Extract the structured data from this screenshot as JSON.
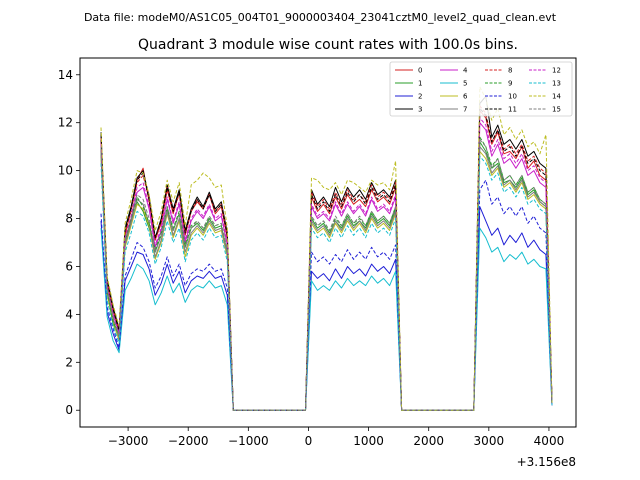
{
  "figure": {
    "suptitle": "Data file: modeM0/AS1C05_004T01_9000003404_23041cztM0_level2_quad_clean.evt"
  },
  "chart_data": {
    "type": "line",
    "title": "Quadrant 3 module wise count rates with 100.0s bins.",
    "xlabel": "",
    "ylabel": "",
    "x_offset_label": "+3.156e8",
    "xlim": [
      -3800,
      4450
    ],
    "ylim": [
      -0.7,
      14.7
    ],
    "xticks": [
      -3000,
      -2000,
      -1000,
      0,
      1000,
      2000,
      3000,
      4000
    ],
    "xtick_labels": [
      "−3000",
      "−2000",
      "−1000",
      "0",
      "1000",
      "2000",
      "3000",
      "4000"
    ],
    "yticks": [
      0,
      2,
      4,
      6,
      8,
      10,
      12,
      14
    ],
    "ytick_labels": [
      "0",
      "2",
      "4",
      "6",
      "8",
      "10",
      "12",
      "14"
    ],
    "legend_position": "top-right",
    "x": [
      -3450,
      -3350,
      -3250,
      -3150,
      -3050,
      -2950,
      -2850,
      -2750,
      -2650,
      -2550,
      -2450,
      -2350,
      -2250,
      -2150,
      -2050,
      -1950,
      -1850,
      -1750,
      -1650,
      -1550,
      -1450,
      -1350,
      -1250,
      -1150,
      -150,
      -50,
      50,
      150,
      250,
      350,
      450,
      550,
      650,
      750,
      850,
      950,
      1050,
      1150,
      1250,
      1350,
      1450,
      1550,
      1650,
      1750,
      2650,
      2750,
      2850,
      2950,
      3050,
      3150,
      3250,
      3350,
      3450,
      3550,
      3650,
      3750,
      3850,
      3950,
      4050
    ],
    "series": [
      {
        "name": "0",
        "color": "#d62020",
        "dash": "solid",
        "values": [
          11.3,
          5.3,
          4.2,
          3.3,
          7.3,
          8.4,
          9.6,
          10.1,
          8.7,
          7.1,
          7.8,
          9.2,
          8.2,
          9.1,
          7.3,
          8.3,
          8.7,
          8.4,
          9.0,
          8.2,
          8.5,
          7.2,
          0,
          0,
          0,
          0,
          8.9,
          8.3,
          8.6,
          8.2,
          8.9,
          8.4,
          9.0,
          8.6,
          8.8,
          8.5,
          9.2,
          8.7,
          8.9,
          8.6,
          9.3,
          0,
          0,
          0,
          0,
          0,
          12.5,
          12.2,
          11.1,
          11.6,
          10.7,
          10.8,
          10.5,
          11.0,
          10.1,
          10.4,
          9.8,
          9.6,
          0.3
        ]
      },
      {
        "name": "1",
        "color": "#2a9d2a",
        "dash": "solid",
        "values": [
          10.8,
          4.9,
          3.6,
          3.0,
          7.0,
          7.9,
          8.7,
          8.3,
          7.6,
          6.6,
          7.3,
          8.4,
          7.5,
          8.2,
          6.8,
          7.6,
          7.8,
          7.5,
          8.0,
          7.6,
          7.7,
          6.6,
          0,
          0,
          0,
          0,
          8.0,
          7.6,
          7.8,
          7.4,
          7.9,
          7.6,
          8.1,
          7.7,
          7.9,
          7.6,
          8.2,
          7.8,
          8.0,
          7.7,
          8.4,
          0,
          0,
          0,
          0,
          0,
          11.2,
          10.8,
          10.1,
          10.3,
          9.5,
          9.6,
          9.3,
          9.7,
          9.0,
          9.2,
          8.7,
          8.5,
          0.3
        ]
      },
      {
        "name": "2",
        "color": "#1f1fd6",
        "dash": "solid",
        "values": [
          7.9,
          4.1,
          3.2,
          2.5,
          5.4,
          6.0,
          6.6,
          6.5,
          5.9,
          4.8,
          5.3,
          6.1,
          5.3,
          5.8,
          4.9,
          5.4,
          5.6,
          5.5,
          5.8,
          5.5,
          5.6,
          4.8,
          0,
          0,
          0,
          0,
          5.8,
          5.5,
          5.7,
          5.4,
          5.9,
          5.5,
          6.0,
          5.7,
          5.9,
          5.6,
          6.1,
          5.8,
          6.0,
          5.7,
          6.3,
          0,
          0,
          0,
          0,
          0,
          8.5,
          7.9,
          7.3,
          7.6,
          6.9,
          7.3,
          7.0,
          7.4,
          6.8,
          7.1,
          6.7,
          6.5,
          0.2
        ]
      },
      {
        "name": "3",
        "color": "#000000",
        "dash": "solid",
        "values": [
          11.6,
          5.5,
          4.3,
          3.4,
          7.6,
          8.5,
          9.7,
          10.0,
          8.9,
          7.2,
          8.0,
          9.4,
          8.4,
          9.2,
          7.5,
          8.4,
          8.9,
          8.5,
          9.1,
          8.4,
          8.7,
          7.4,
          0,
          0,
          0,
          0,
          9.2,
          8.6,
          8.9,
          8.5,
          9.3,
          8.7,
          9.3,
          8.9,
          9.2,
          8.8,
          9.5,
          9.0,
          9.2,
          8.9,
          9.6,
          0,
          0,
          0,
          0,
          0,
          12.8,
          13.1,
          11.4,
          11.9,
          11.1,
          11.3,
          10.9,
          11.3,
          10.6,
          10.8,
          10.3,
          10.1,
          0.3
        ]
      },
      {
        "name": "4",
        "color": "#c81fc8",
        "dash": "solid",
        "values": [
          11.0,
          5.1,
          4.0,
          3.2,
          7.1,
          8.0,
          9.1,
          9.3,
          8.4,
          6.8,
          7.5,
          8.8,
          7.8,
          8.6,
          7.0,
          7.9,
          8.3,
          8.0,
          8.5,
          7.9,
          8.1,
          6.9,
          0,
          0,
          0,
          0,
          8.5,
          8.0,
          8.2,
          7.9,
          8.6,
          8.1,
          8.6,
          8.2,
          8.5,
          8.1,
          8.8,
          8.3,
          8.5,
          8.2,
          8.9,
          0,
          0,
          0,
          0,
          0,
          12.0,
          11.7,
          10.6,
          11.1,
          10.3,
          10.5,
          10.1,
          10.5,
          9.8,
          10.0,
          9.5,
          9.3,
          0.3
        ]
      },
      {
        "name": "5",
        "color": "#17becf",
        "dash": "solid",
        "values": [
          7.6,
          3.9,
          2.9,
          2.4,
          5.0,
          5.5,
          6.1,
          5.9,
          5.4,
          4.4,
          4.9,
          5.6,
          4.9,
          5.3,
          4.5,
          5.0,
          5.2,
          5.1,
          5.4,
          5.1,
          5.2,
          4.4,
          0,
          0,
          0,
          0,
          5.4,
          5.0,
          5.2,
          5.0,
          5.4,
          5.1,
          5.5,
          5.2,
          5.4,
          5.2,
          5.6,
          5.3,
          5.5,
          5.2,
          5.8,
          0,
          0,
          0,
          0,
          0,
          7.6,
          7.2,
          6.6,
          6.8,
          6.2,
          6.5,
          6.3,
          6.6,
          6.1,
          6.3,
          6.0,
          5.9,
          0.2
        ]
      },
      {
        "name": "6",
        "color": "#bcbd22",
        "dash": "solid",
        "values": [
          10.6,
          4.8,
          3.7,
          2.9,
          6.8,
          7.7,
          8.6,
          8.4,
          7.7,
          6.3,
          7.0,
          8.2,
          7.2,
          7.9,
          6.4,
          7.3,
          7.6,
          7.3,
          7.8,
          7.4,
          7.5,
          6.4,
          0,
          0,
          0,
          0,
          7.8,
          7.4,
          7.6,
          7.2,
          7.8,
          7.4,
          7.9,
          7.5,
          7.8,
          7.4,
          8.0,
          7.6,
          7.8,
          7.5,
          8.2,
          0,
          0,
          0,
          0,
          0,
          10.8,
          10.5,
          9.8,
          10.1,
          9.3,
          9.5,
          9.1,
          9.5,
          8.8,
          9.0,
          8.6,
          8.4,
          0.3
        ]
      },
      {
        "name": "7",
        "color": "#7f7f7f",
        "dash": "solid",
        "values": [
          10.7,
          5.0,
          3.8,
          3.0,
          6.9,
          7.8,
          8.8,
          8.6,
          7.8,
          6.4,
          7.1,
          8.3,
          7.3,
          8.0,
          6.6,
          7.4,
          7.7,
          7.4,
          7.9,
          7.5,
          7.6,
          6.5,
          0,
          0,
          0,
          0,
          7.9,
          7.5,
          7.7,
          7.3,
          7.9,
          7.5,
          8.0,
          7.6,
          7.9,
          7.5,
          8.1,
          7.7,
          7.9,
          7.6,
          8.3,
          0,
          0,
          0,
          0,
          0,
          11.0,
          10.7,
          9.9,
          10.2,
          9.4,
          9.6,
          9.2,
          9.6,
          8.9,
          9.1,
          8.7,
          8.5,
          0.3
        ]
      },
      {
        "name": "8",
        "color": "#d62020",
        "dash": "dashed",
        "values": [
          11.4,
          5.4,
          4.2,
          3.3,
          7.4,
          8.3,
          9.5,
          9.8,
          8.8,
          7.1,
          7.9,
          9.3,
          8.3,
          9.0,
          7.4,
          8.3,
          8.8,
          8.4,
          9.0,
          8.3,
          8.6,
          7.3,
          0,
          0,
          0,
          0,
          9.1,
          8.5,
          8.8,
          8.4,
          9.1,
          8.6,
          9.2,
          8.8,
          9.0,
          8.7,
          9.4,
          8.9,
          9.1,
          8.8,
          9.5,
          0,
          0,
          0,
          0,
          0,
          12.7,
          12.4,
          11.2,
          11.7,
          10.9,
          11.1,
          10.7,
          11.1,
          10.4,
          10.6,
          10.1,
          9.9,
          0.3
        ]
      },
      {
        "name": "9",
        "color": "#2a9d2a",
        "dash": "dashed",
        "values": [
          10.9,
          5.0,
          3.7,
          3.1,
          7.1,
          8.0,
          8.9,
          8.5,
          7.8,
          6.7,
          7.4,
          8.5,
          7.6,
          8.3,
          6.9,
          7.7,
          7.9,
          7.6,
          8.1,
          7.7,
          7.8,
          6.7,
          0,
          0,
          0,
          0,
          8.1,
          7.7,
          7.9,
          7.5,
          8.0,
          7.7,
          8.2,
          7.8,
          8.0,
          7.7,
          8.3,
          7.9,
          8.1,
          7.8,
          8.5,
          0,
          0,
          0,
          0,
          0,
          11.4,
          11.0,
          10.2,
          10.5,
          9.6,
          9.8,
          9.4,
          9.8,
          9.1,
          9.3,
          8.8,
          8.6,
          0.3
        ]
      },
      {
        "name": "10",
        "color": "#1f1fd6",
        "dash": "dashed",
        "values": [
          8.2,
          4.3,
          3.4,
          2.6,
          5.6,
          6.3,
          7.0,
          6.8,
          6.2,
          5.1,
          5.6,
          6.4,
          5.6,
          6.1,
          5.2,
          5.7,
          5.9,
          5.8,
          6.1,
          5.8,
          5.9,
          5.1,
          0,
          0,
          0,
          0,
          6.6,
          6.2,
          6.4,
          6.1,
          6.5,
          6.2,
          6.7,
          6.3,
          6.6,
          6.3,
          6.8,
          6.4,
          6.6,
          6.3,
          6.9,
          0,
          0,
          0,
          0,
          0,
          9.2,
          9.6,
          8.6,
          8.9,
          8.2,
          8.5,
          8.1,
          8.5,
          7.8,
          8.1,
          7.6,
          7.4,
          0.2
        ]
      },
      {
        "name": "11",
        "color": "#000000",
        "dash": "dashed",
        "values": [
          11.5,
          5.4,
          4.2,
          3.3,
          7.5,
          8.4,
          9.6,
          9.9,
          8.8,
          7.2,
          7.9,
          9.3,
          8.3,
          9.1,
          7.4,
          8.3,
          8.8,
          8.4,
          9.0,
          8.3,
          8.6,
          7.3,
          0,
          0,
          0,
          0,
          9.0,
          8.4,
          8.7,
          8.3,
          9.0,
          8.5,
          9.1,
          8.7,
          9.0,
          8.6,
          9.3,
          8.8,
          9.0,
          8.7,
          9.4,
          0,
          0,
          0,
          0,
          0,
          12.6,
          12.3,
          11.2,
          11.7,
          10.8,
          11.0,
          10.6,
          11.0,
          10.3,
          10.5,
          10.0,
          9.8,
          0.3
        ]
      },
      {
        "name": "12",
        "color": "#c81fc8",
        "dash": "dashed",
        "values": [
          11.1,
          5.2,
          4.0,
          3.2,
          7.2,
          8.1,
          9.3,
          9.5,
          8.5,
          6.9,
          7.6,
          8.9,
          7.9,
          8.7,
          7.1,
          8.0,
          8.4,
          8.1,
          8.6,
          8.0,
          8.2,
          7.0,
          0,
          0,
          0,
          0,
          8.6,
          8.1,
          8.3,
          8.0,
          8.7,
          8.2,
          8.7,
          8.3,
          8.6,
          8.2,
          8.9,
          8.4,
          8.6,
          8.3,
          9.0,
          0,
          0,
          0,
          0,
          0,
          12.2,
          11.9,
          10.8,
          11.3,
          10.5,
          10.7,
          10.3,
          10.7,
          10.0,
          10.2,
          9.7,
          9.5,
          0.3
        ]
      },
      {
        "name": "13",
        "color": "#17becf",
        "dash": "dashed",
        "values": [
          10.3,
          4.6,
          3.5,
          2.8,
          6.6,
          7.4,
          8.3,
          8.1,
          7.4,
          6.1,
          6.8,
          7.9,
          7.0,
          7.6,
          6.2,
          7.1,
          7.4,
          7.1,
          7.6,
          7.2,
          7.3,
          6.2,
          0,
          0,
          0,
          0,
          7.6,
          7.2,
          7.4,
          7.0,
          7.6,
          7.2,
          7.7,
          7.3,
          7.6,
          7.2,
          7.8,
          7.4,
          7.6,
          7.3,
          8.0,
          0,
          0,
          0,
          0,
          0,
          10.6,
          10.3,
          9.6,
          9.9,
          9.1,
          9.3,
          8.9,
          9.3,
          8.6,
          8.8,
          8.4,
          8.2,
          0.3
        ]
      },
      {
        "name": "14",
        "color": "#bcbd22",
        "dash": "dashed",
        "values": [
          11.8,
          5.6,
          4.4,
          3.5,
          7.8,
          8.8,
          10.0,
          9.9,
          9.0,
          7.5,
          8.3,
          9.6,
          8.7,
          9.5,
          7.7,
          9.4,
          9.6,
          9.9,
          9.7,
          9.3,
          9.4,
          7.6,
          0,
          0,
          0,
          0,
          9.7,
          9.6,
          9.3,
          9.2,
          9.5,
          9.0,
          9.6,
          9.5,
          9.3,
          9.1,
          9.6,
          9.4,
          9.5,
          9.2,
          10.4,
          0,
          0,
          0,
          0,
          0,
          13.5,
          13.0,
          12.1,
          12.6,
          11.5,
          11.8,
          11.3,
          11.7,
          11.0,
          11.2,
          10.7,
          11.5,
          0.3
        ]
      },
      {
        "name": "15",
        "color": "#7f7f7f",
        "dash": "dashed",
        "values": [
          11.0,
          5.1,
          3.9,
          3.1,
          7.1,
          8.0,
          9.0,
          8.8,
          8.0,
          6.6,
          7.3,
          8.5,
          7.5,
          8.2,
          6.8,
          7.6,
          7.9,
          7.6,
          8.1,
          7.7,
          7.8,
          6.7,
          0,
          0,
          0,
          0,
          8.1,
          7.7,
          7.9,
          7.5,
          8.1,
          7.7,
          8.2,
          7.8,
          8.1,
          7.7,
          8.3,
          7.9,
          8.1,
          7.8,
          8.5,
          0,
          0,
          0,
          0,
          0,
          11.3,
          11.0,
          10.1,
          10.5,
          9.6,
          9.8,
          9.4,
          9.8,
          9.1,
          9.3,
          8.8,
          8.6,
          0.3
        ]
      }
    ]
  }
}
